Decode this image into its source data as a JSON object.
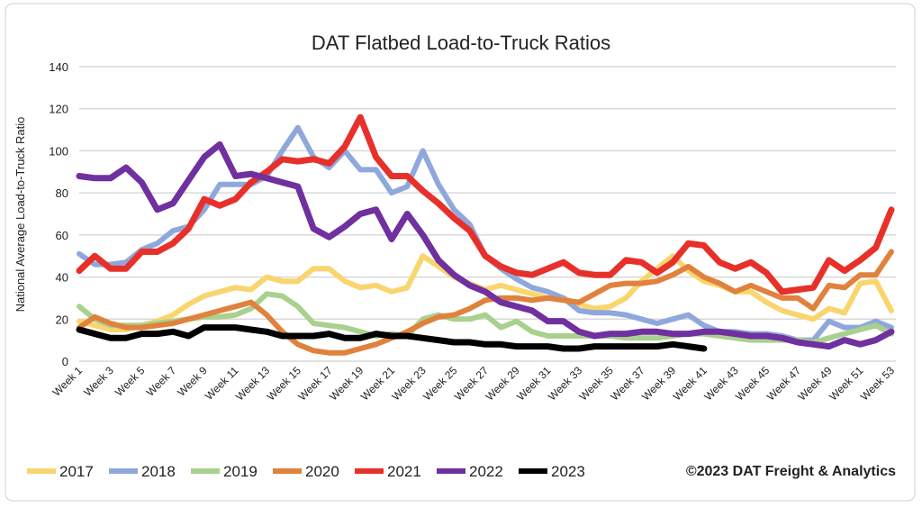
{
  "chart_data": {
    "type": "line",
    "title": "DAT Flatbed Load-to-Truck Ratios",
    "xlabel": "",
    "ylabel": "National Average Load-to-Truck Ratio",
    "ylim": [
      0,
      140
    ],
    "yticks": [
      0,
      20,
      40,
      60,
      80,
      100,
      120,
      140
    ],
    "grid": true,
    "legend_position": "bottom",
    "copyright": "©2023 DAT Freight & Analytics",
    "x_tick_labels": [
      "Week 1",
      "Week 3",
      "Week 5",
      "Week 7",
      "Week 9",
      "Week 11",
      "Week 13",
      "Week 15",
      "Week 17",
      "Week 19",
      "Week 21",
      "Week 23",
      "Week 25",
      "Week 27",
      "Week 29",
      "Week 31",
      "Week 33",
      "Week 35",
      "Week 37",
      "Week 39",
      "Week 41",
      "Week 43",
      "Week 45",
      "Week 47",
      "Week 49",
      "Week 51",
      "Week 53"
    ],
    "x": "Week 1 - Week 53",
    "series": [
      {
        "name": "2017",
        "color": "#F9D56E",
        "values": [
          19,
          17,
          15,
          15,
          17,
          19,
          22,
          27,
          31,
          33,
          35,
          34,
          40,
          38,
          38,
          44,
          44,
          38,
          35,
          36,
          33,
          35,
          50,
          45,
          40,
          37,
          34,
          36,
          34,
          32,
          30,
          30,
          27,
          25,
          26,
          30,
          38,
          44,
          50,
          43,
          38,
          36,
          33,
          33,
          28,
          24,
          22,
          20,
          25,
          23,
          37,
          38,
          24
        ]
      },
      {
        "name": "2018",
        "color": "#8FA8DC",
        "values": [
          51,
          46,
          46,
          47,
          53,
          56,
          62,
          64,
          72,
          84,
          84,
          84,
          88,
          100,
          111,
          97,
          92,
          100,
          91,
          91,
          80,
          83,
          100,
          84,
          72,
          65,
          50,
          44,
          39,
          35,
          33,
          30,
          24,
          23,
          23,
          22,
          20,
          18,
          20,
          22,
          17,
          14,
          14,
          13,
          13,
          12,
          10,
          10,
          19,
          16,
          16,
          19,
          16
        ]
      },
      {
        "name": "2019",
        "color": "#A9D18E",
        "values": [
          26,
          20,
          17,
          17,
          17,
          18,
          19,
          20,
          21,
          21,
          22,
          25,
          32,
          31,
          26,
          18,
          17,
          16,
          14,
          12,
          13,
          12,
          20,
          22,
          20,
          20,
          22,
          16,
          19,
          14,
          12,
          12,
          12,
          12,
          12,
          11,
          11,
          11,
          12,
          13,
          13,
          12,
          11,
          10,
          10,
          10,
          10,
          9,
          11,
          13,
          15,
          17,
          13
        ]
      },
      {
        "name": "2020",
        "color": "#E0823D",
        "values": [
          16,
          21,
          18,
          16,
          16,
          17,
          18,
          20,
          22,
          24,
          26,
          28,
          22,
          14,
          8,
          5,
          4,
          4,
          6,
          8,
          11,
          14,
          18,
          21,
          22,
          25,
          29,
          30,
          30,
          29,
          30,
          29,
          28,
          32,
          36,
          37,
          37,
          38,
          41,
          45,
          40,
          37,
          33,
          36,
          33,
          30,
          30,
          25,
          36,
          35,
          41,
          41,
          52
        ]
      },
      {
        "name": "2021",
        "color": "#E8302A",
        "values": [
          43,
          50,
          44,
          44,
          52,
          52,
          56,
          63,
          77,
          74,
          77,
          85,
          90,
          96,
          95,
          96,
          94,
          102,
          116,
          97,
          88,
          88,
          81,
          75,
          68,
          62,
          50,
          45,
          42,
          41,
          44,
          47,
          42,
          41,
          41,
          48,
          47,
          42,
          47,
          56,
          55,
          47,
          44,
          47,
          42,
          33,
          34,
          35,
          48,
          43,
          48,
          54,
          72
        ]
      },
      {
        "name": "2022",
        "color": "#7030A0",
        "values": [
          88,
          87,
          87,
          92,
          85,
          72,
          75,
          86,
          97,
          103,
          88,
          89,
          87,
          85,
          83,
          63,
          59,
          64,
          70,
          72,
          58,
          70,
          60,
          48,
          41,
          36,
          33,
          28,
          26,
          24,
          19,
          19,
          14,
          12,
          13,
          13,
          14,
          14,
          13,
          13,
          14,
          14,
          13,
          12,
          12,
          11,
          9,
          8,
          7,
          10,
          8,
          10,
          14
        ]
      },
      {
        "name": "2023",
        "color": "#000000",
        "values": [
          15,
          13,
          11,
          11,
          13,
          13,
          14,
          12,
          16,
          16,
          16,
          15,
          14,
          12,
          12,
          12,
          13,
          11,
          11,
          13,
          12,
          12,
          11,
          10,
          9,
          9,
          8,
          8,
          7,
          7,
          7,
          6,
          6,
          7,
          7,
          7,
          7,
          7,
          8,
          7,
          6
        ]
      }
    ]
  }
}
